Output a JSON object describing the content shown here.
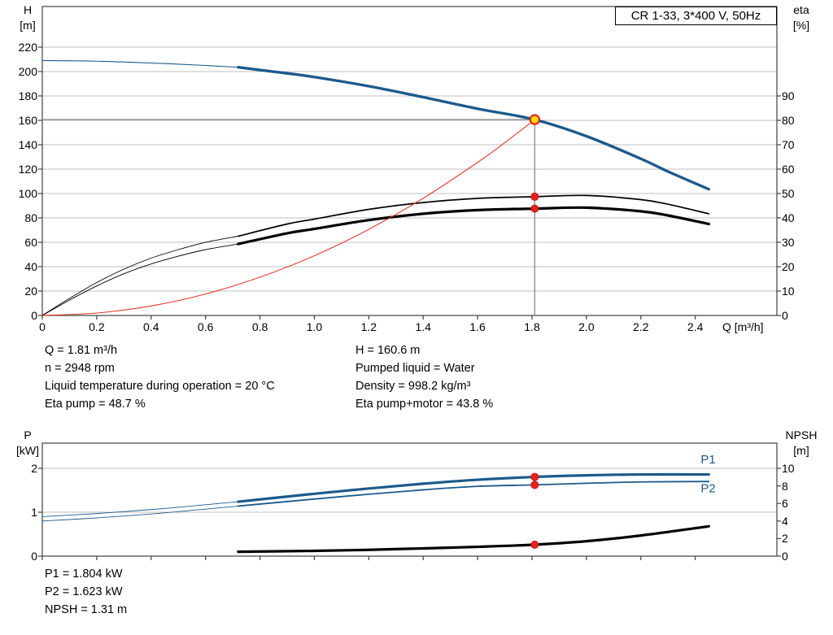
{
  "title_box": {
    "label": "CR 1-33, 3*400 V, 50Hz"
  },
  "colors": {
    "blue": "#1c5a8c",
    "black": "#000000",
    "red_curve": "#e03a2f",
    "marker_red": "#e8211d",
    "marker_red_edge": "#b01510",
    "marker_yellow": "#ffdf00",
    "duty_line": "#8f8f8f",
    "grid": "#bfbfbf",
    "frame": "#404040"
  },
  "axes": {
    "top_left": {
      "title": "H",
      "unit": "[m]"
    },
    "top_right": {
      "title": "eta",
      "unit": "[%]"
    },
    "top_x": {
      "label": "Q [m³/h]"
    },
    "bottom_left": {
      "title": "P",
      "unit": "[kW]"
    },
    "bottom_right": {
      "title": "NPSH",
      "unit": "[m]"
    }
  },
  "info_top": {
    "left": [
      "Q = 1.81 m³/h",
      "n = 2948 rpm",
      "Liquid temperature during operation = 20 °C",
      "Eta pump = 48.7 %"
    ],
    "right": [
      "H = 160.6 m",
      "Pumped liquid = Water",
      "Density = 998.2 kg/m³",
      "Eta pump+motor = 43.8 %"
    ]
  },
  "info_bottom": [
    "P1 = 1.804 kW",
    "P2 = 1.623 kW",
    "NPSH = 1.31 m"
  ],
  "chart_data": [
    {
      "id": "head-eta-chart",
      "type": "line",
      "title": "CR 1-33, 3*400 V, 50Hz",
      "x": {
        "label": "Q [m³/h]",
        "min": 0,
        "max": 2.7,
        "ticks": [
          0,
          0.2,
          0.4,
          0.6,
          0.8,
          1.0,
          1.2,
          1.4,
          1.6,
          1.8,
          2.0,
          2.2,
          2.4
        ]
      },
      "y_left": {
        "label": "H [m]",
        "min": 0,
        "max": 253.33,
        "ticks": [
          0,
          20,
          40,
          60,
          80,
          100,
          120,
          140,
          160,
          180,
          200,
          220
        ],
        "grid": true
      },
      "y_right": {
        "label": "eta [%]",
        "min": 0,
        "max": 126.67,
        "ticks": [
          0,
          10,
          20,
          30,
          40,
          50,
          60,
          70,
          80,
          90
        ]
      },
      "series": [
        {
          "name": "head",
          "axis": "left",
          "color": "blue",
          "width": 3.4,
          "thin_width": 1.1,
          "split": 0.72,
          "points": [
            [
              0,
              209
            ],
            [
              0.2,
              208.5
            ],
            [
              0.4,
              207
            ],
            [
              0.6,
              205
            ],
            [
              0.72,
              203.5
            ],
            [
              0.9,
              198.5
            ],
            [
              1.0,
              195.5
            ],
            [
              1.2,
              188
            ],
            [
              1.4,
              179
            ],
            [
              1.6,
              169.5
            ],
            [
              1.81,
              160.6
            ],
            [
              2.0,
              147
            ],
            [
              2.2,
              128.5
            ],
            [
              2.3,
              118
            ],
            [
              2.45,
              103.5
            ]
          ]
        },
        {
          "name": "eta-pump",
          "axis": "right",
          "color": "black",
          "width": 1.7,
          "thin_width": 0.9,
          "split": 0.72,
          "points": [
            [
              0,
              0
            ],
            [
              0.1,
              7
            ],
            [
              0.2,
              13.5
            ],
            [
              0.3,
              19
            ],
            [
              0.4,
              23.5
            ],
            [
              0.5,
              27
            ],
            [
              0.6,
              30
            ],
            [
              0.72,
              32.5
            ],
            [
              0.9,
              37.5
            ],
            [
              1.0,
              39.5
            ],
            [
              1.2,
              43.5
            ],
            [
              1.4,
              46.3
            ],
            [
              1.6,
              48
            ],
            [
              1.81,
              48.7
            ],
            [
              2.0,
              49.2
            ],
            [
              2.2,
              47.5
            ],
            [
              2.3,
              45.6
            ],
            [
              2.45,
              41.7
            ]
          ]
        },
        {
          "name": "eta-pump-motor",
          "axis": "right",
          "color": "black",
          "width": 3.2,
          "thin_width": 0.9,
          "split": 0.72,
          "points": [
            [
              0,
              0
            ],
            [
              0.1,
              6.3
            ],
            [
              0.2,
              12.1
            ],
            [
              0.3,
              17.1
            ],
            [
              0.4,
              21.1
            ],
            [
              0.5,
              24.3
            ],
            [
              0.6,
              27
            ],
            [
              0.72,
              29.3
            ],
            [
              0.9,
              33.7
            ],
            [
              1.0,
              35.5
            ],
            [
              1.2,
              39.1
            ],
            [
              1.4,
              41.7
            ],
            [
              1.6,
              43.2
            ],
            [
              1.81,
              43.8
            ],
            [
              2.0,
              44.2
            ],
            [
              2.2,
              42.7
            ],
            [
              2.3,
              41
            ],
            [
              2.45,
              37.5
            ]
          ]
        },
        {
          "name": "system-curve",
          "axis": "left",
          "color": "red_curve",
          "width": 1.1,
          "points": [
            [
              0,
              0
            ],
            [
              0.2,
              2
            ],
            [
              0.4,
              7.8
            ],
            [
              0.6,
              17.6
            ],
            [
              0.8,
              31.4
            ],
            [
              1.0,
              49
            ],
            [
              1.2,
              70.6
            ],
            [
              1.4,
              96.1
            ],
            [
              1.6,
              125.5
            ],
            [
              1.7,
              141.7
            ],
            [
              1.81,
              160.6
            ]
          ]
        }
      ],
      "duty_point": {
        "q": 1.81,
        "h": 160.6
      },
      "markers": [
        {
          "type": "red",
          "axis": "right",
          "q": 1.81,
          "v": 48.7
        },
        {
          "type": "red",
          "axis": "right",
          "q": 1.81,
          "v": 43.8
        }
      ]
    },
    {
      "id": "power-npsh-chart",
      "type": "line",
      "x": {
        "min": 0,
        "max": 2.7,
        "ticks": [
          0,
          0.2,
          0.4,
          0.6,
          0.8,
          1.0,
          1.2,
          1.4,
          1.6,
          1.8,
          2.0,
          2.2,
          2.4
        ]
      },
      "y_left": {
        "label": "P [kW]",
        "min": 0,
        "max": 2.574,
        "ticks": [
          0,
          1,
          2
        ],
        "grid": true
      },
      "y_right": {
        "label": "NPSH [m]",
        "min": 0,
        "max": 12.87,
        "ticks": [
          0,
          2,
          4,
          6,
          8,
          10
        ]
      },
      "series": [
        {
          "name": "p1",
          "axis": "left",
          "color": "blue",
          "width": 3.2,
          "thin_width": 0.9,
          "split": 0.72,
          "points": [
            [
              0,
              0.9
            ],
            [
              0.2,
              0.97
            ],
            [
              0.4,
              1.06
            ],
            [
              0.6,
              1.17
            ],
            [
              0.72,
              1.24
            ],
            [
              1.0,
              1.42
            ],
            [
              1.2,
              1.54
            ],
            [
              1.4,
              1.65
            ],
            [
              1.6,
              1.74
            ],
            [
              1.81,
              1.804
            ],
            [
              2.0,
              1.84
            ],
            [
              2.2,
              1.86
            ],
            [
              2.45,
              1.86
            ]
          ]
        },
        {
          "name": "p2",
          "axis": "left",
          "color": "blue",
          "width": 1.8,
          "thin_width": 0.9,
          "split": 0.72,
          "points": [
            [
              0,
              0.8
            ],
            [
              0.2,
              0.87
            ],
            [
              0.4,
              0.96
            ],
            [
              0.6,
              1.07
            ],
            [
              0.72,
              1.14
            ],
            [
              1.0,
              1.3
            ],
            [
              1.2,
              1.41
            ],
            [
              1.4,
              1.51
            ],
            [
              1.6,
              1.59
            ],
            [
              1.81,
              1.623
            ],
            [
              2.0,
              1.66
            ],
            [
              2.2,
              1.69
            ],
            [
              2.45,
              1.7
            ]
          ]
        },
        {
          "name": "npsh",
          "axis": "right",
          "color": "black",
          "width": 3.2,
          "points": [
            [
              0.72,
              0.5
            ],
            [
              1.0,
              0.6
            ],
            [
              1.2,
              0.72
            ],
            [
              1.4,
              0.88
            ],
            [
              1.6,
              1.06
            ],
            [
              1.81,
              1.31
            ],
            [
              2.0,
              1.7
            ],
            [
              2.2,
              2.35
            ],
            [
              2.45,
              3.4
            ]
          ]
        }
      ],
      "markers": [
        {
          "type": "red",
          "axis": "left",
          "q": 1.81,
          "v": 1.804
        },
        {
          "type": "red",
          "axis": "left",
          "q": 1.81,
          "v": 1.623
        },
        {
          "type": "red",
          "axis": "right",
          "q": 1.81,
          "v": 1.31
        }
      ],
      "series_labels": [
        {
          "text": "P1",
          "q": 2.42,
          "v": 2.11,
          "axis": "left",
          "color": "blue"
        },
        {
          "text": "P2",
          "q": 2.42,
          "v": 1.45,
          "axis": "left",
          "color": "blue"
        }
      ]
    }
  ]
}
